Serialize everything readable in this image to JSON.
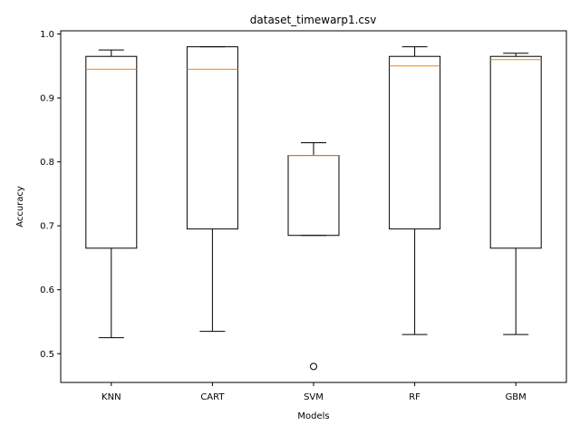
{
  "chart_data": {
    "type": "box",
    "title": "dataset_timewarp1.csv",
    "xlabel": "Models",
    "ylabel": "Accuracy",
    "ylim": [
      0.455,
      1.005
    ],
    "yticks": [
      "0.5",
      "0.6",
      "0.7",
      "0.8",
      "0.9",
      "1.0"
    ],
    "categories": [
      "KNN",
      "CART",
      "SVM",
      "RF",
      "GBM"
    ],
    "boxes": [
      {
        "category": "KNN",
        "whisker_low": 0.525,
        "q1": 0.665,
        "median": 0.945,
        "q3": 0.965,
        "whisker_high": 0.975,
        "outliers": []
      },
      {
        "category": "CART",
        "whisker_low": 0.535,
        "q1": 0.695,
        "median": 0.945,
        "q3": 0.98,
        "whisker_high": 0.98,
        "outliers": []
      },
      {
        "category": "SVM",
        "whisker_low": 0.685,
        "q1": 0.685,
        "median": 0.81,
        "q3": 0.81,
        "whisker_high": 0.83,
        "outliers": [
          0.48
        ]
      },
      {
        "category": "RF",
        "whisker_low": 0.53,
        "q1": 0.695,
        "median": 0.95,
        "q3": 0.965,
        "whisker_high": 0.98,
        "outliers": []
      },
      {
        "category": "GBM",
        "whisker_low": 0.53,
        "q1": 0.665,
        "median": 0.96,
        "q3": 0.965,
        "whisker_high": 0.97,
        "outliers": []
      }
    ],
    "colors": {
      "box": "#000000",
      "median": "#ff7f0e",
      "outlier": "#000000"
    },
    "grid": false,
    "legend": "none"
  }
}
